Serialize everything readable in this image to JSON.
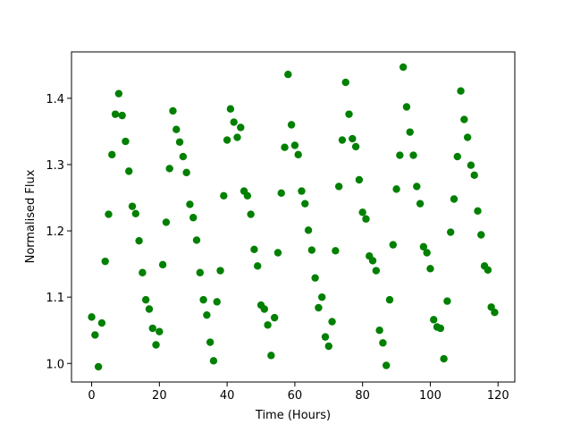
{
  "chart_data": {
    "type": "scatter",
    "x_label": "Time (Hours)",
    "y_label": "Normalised Flux",
    "color": "#008000",
    "x": [
      0,
      1,
      2,
      3,
      4,
      5,
      6,
      7,
      8,
      9,
      10,
      11,
      12,
      13,
      14,
      15,
      16,
      17,
      18,
      19,
      20,
      21,
      22,
      23,
      24,
      25,
      26,
      27,
      28,
      29,
      30,
      31,
      32,
      33,
      34,
      35,
      36,
      37,
      38,
      39,
      40,
      41,
      42,
      43,
      44,
      45,
      46,
      47,
      48,
      49,
      50,
      51,
      52,
      53,
      54,
      55,
      56,
      57,
      58,
      59,
      60,
      61,
      62,
      63,
      64,
      65,
      66,
      67,
      68,
      69,
      70,
      71,
      72,
      73,
      74,
      75,
      76,
      77,
      78,
      79,
      80,
      81,
      82,
      83,
      84,
      85,
      86,
      87,
      88,
      89,
      90,
      91,
      92,
      93,
      94,
      95,
      96,
      97,
      98,
      99,
      100,
      101,
      102,
      103,
      104,
      105,
      106,
      107,
      108,
      109,
      110,
      111,
      112,
      113,
      114,
      115,
      116,
      117,
      118,
      119
    ],
    "values": [
      1.07,
      1.043,
      0.995,
      1.061,
      1.154,
      1.225,
      1.315,
      1.376,
      1.407,
      1.374,
      1.335,
      1.29,
      1.237,
      1.226,
      1.185,
      1.137,
      1.096,
      1.082,
      1.053,
      1.028,
      1.048,
      1.149,
      1.213,
      1.294,
      1.381,
      1.353,
      1.334,
      1.312,
      1.288,
      1.24,
      1.22,
      1.186,
      1.137,
      1.096,
      1.073,
      1.032,
      1.004,
      1.093,
      1.14,
      1.253,
      1.337,
      1.384,
      1.364,
      1.341,
      1.356,
      1.26,
      1.253,
      1.225,
      1.172,
      1.147,
      1.088,
      1.082,
      1.058,
      1.012,
      1.069,
      1.167,
      1.257,
      1.326,
      1.436,
      1.36,
      1.329,
      1.315,
      1.26,
      1.241,
      1.201,
      1.171,
      1.129,
      1.084,
      1.1,
      1.04,
      1.026,
      1.063,
      1.17,
      1.267,
      1.337,
      1.424,
      1.376,
      1.339,
      1.327,
      1.277,
      1.228,
      1.218,
      1.162,
      1.155,
      1.14,
      1.05,
      1.031,
      0.997,
      1.096,
      1.179,
      1.263,
      1.314,
      1.447,
      1.387,
      1.349,
      1.314,
      1.267,
      1.241,
      1.176,
      1.167,
      1.143,
      1.066,
      1.055,
      1.053,
      1.007,
      1.094,
      1.198,
      1.248,
      1.312,
      1.411,
      1.368,
      1.341,
      1.299,
      1.284,
      1.23,
      1.194,
      1.147,
      1.141,
      1.085,
      1.077
    ],
    "xlim": [
      -5.95,
      124.95
    ],
    "ylim": [
      0.972,
      1.47
    ],
    "xticks": [
      0,
      20,
      40,
      60,
      80,
      100,
      120
    ],
    "yticks": [
      {
        "value": 1.0,
        "label": "1.0"
      },
      1.1,
      1.2,
      1.3,
      1.4
    ]
  }
}
